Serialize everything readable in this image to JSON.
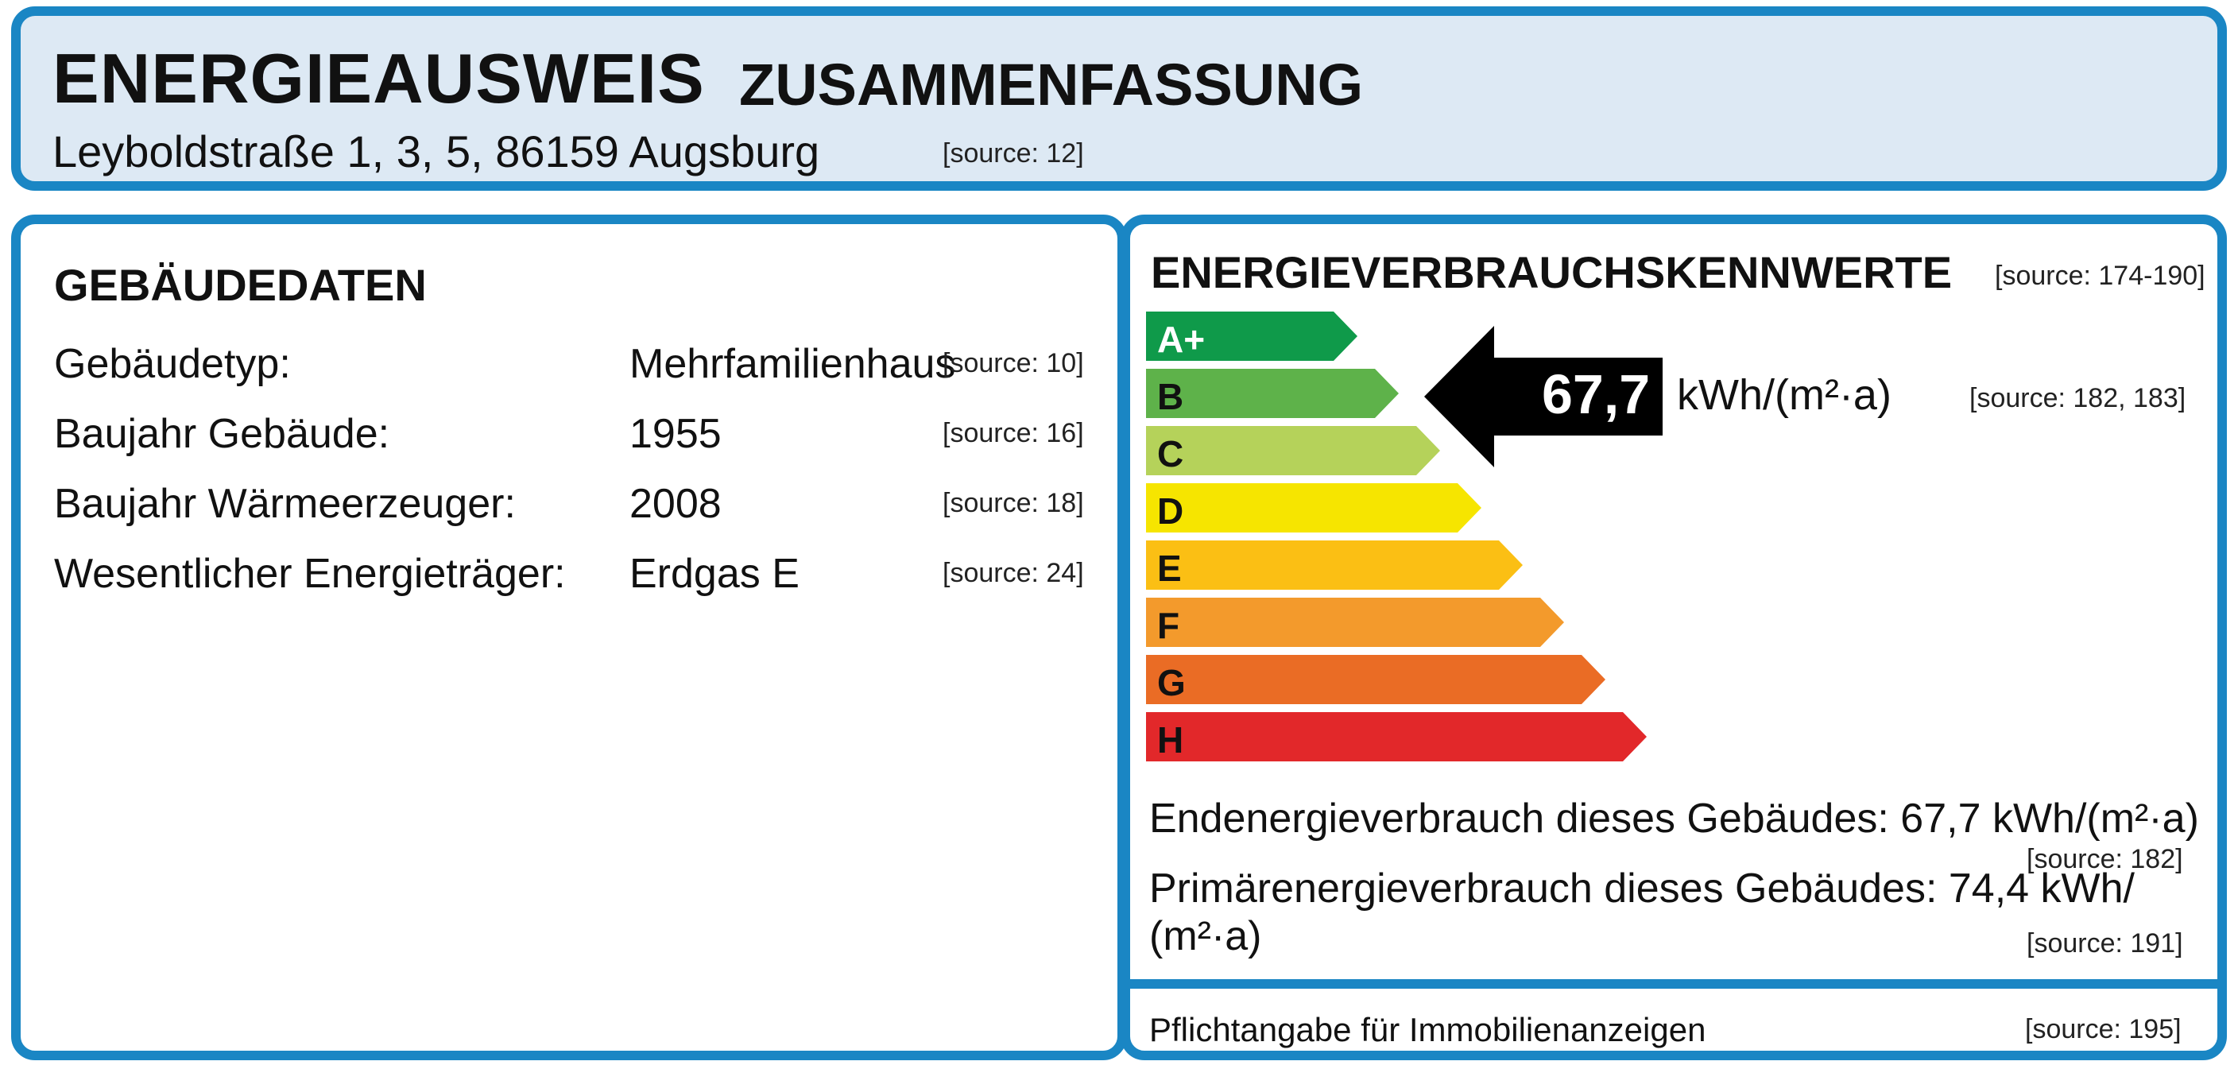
{
  "header": {
    "title_main": "ENERGIEAUSWEIS",
    "title_sub": "ZUSAMMENFASSUNG",
    "address": "Leyboldstraße 1, 3, 5, 86159 Augsburg",
    "address_source": "[source: 12]"
  },
  "building": {
    "title": "GEBÄUDEDATEN",
    "rows": [
      {
        "label": "Gebäudetyp:",
        "value": "Mehrfamilienhaus",
        "source": "[source: 10]"
      },
      {
        "label": "Baujahr Gebäude:",
        "value": "1955",
        "source": "[source: 16]"
      },
      {
        "label": "Baujahr Wärmeerzeuger:",
        "value": "2008",
        "source": "[source: 18]"
      },
      {
        "label": "Wesentlicher Energieträger:",
        "value": "Erdgas E",
        "source": "[source: 24]"
      }
    ]
  },
  "energy": {
    "title": "ENERGIEVERBRAUCHSKENNWERTE",
    "title_source": "[source: 174-190]",
    "scale": [
      {
        "label": "A+",
        "color": "#0f9a4a"
      },
      {
        "label": "B",
        "color": "#5eb24a"
      },
      {
        "label": "C",
        "color": "#b5d25a"
      },
      {
        "label": "D",
        "color": "#f6e500"
      },
      {
        "label": "E",
        "color": "#fbbf14"
      },
      {
        "label": "F",
        "color": "#f39a2c"
      },
      {
        "label": "G",
        "color": "#ea6c25"
      },
      {
        "label": "H",
        "color": "#e2282a"
      }
    ],
    "indicator": {
      "value": "67,7",
      "unit": "kWh/(m²·a)",
      "source": "[source: 182, 183]"
    },
    "end_energy_text": "Endenergieverbrauch dieses Gebäudes: 67,7 kWh/(m²·a)",
    "end_energy_source": "[source: 182]",
    "primary_energy_line1": "Primärenergieverbrauch dieses Gebäudes: 74,4 kWh/",
    "primary_energy_line2": "(m²·a)",
    "primary_energy_source": "[source: 191]",
    "footer_text": "Pflichtangabe für Immobilienanzeigen",
    "footer_source": "[source: 195]"
  }
}
